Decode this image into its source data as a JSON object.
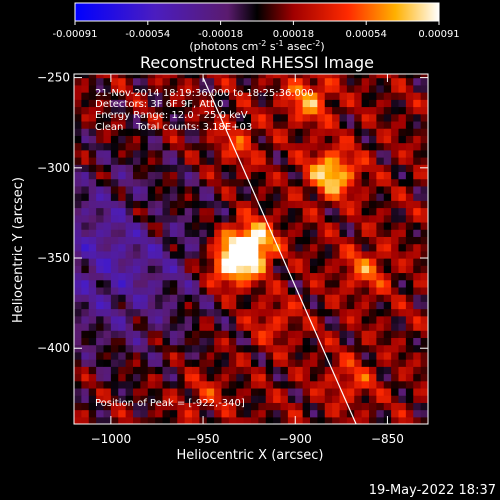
{
  "colorbar": {
    "ticks": [
      "-0.00091",
      "-0.00054",
      "-0.00018",
      "0.00018",
      "0.00054",
      "0.00091"
    ],
    "unit_text": "(photons cm",
    "unit_sup1": "-2",
    "unit_mid": " s",
    "unit_sup2": "-1",
    "unit_tail": " asec",
    "unit_sup3": "-2",
    "unit_close": ")",
    "range": [
      -0.00091,
      0.00091
    ]
  },
  "chart_data": {
    "type": "heatmap",
    "title": "Reconstructed RHESSI Image",
    "xlabel": "Heliocentric X (arcsec)",
    "ylabel": "Heliocentric Y (arcsec)",
    "xlim": [
      -1020,
      -828
    ],
    "ylim": [
      -442,
      -248
    ],
    "xticks": [
      -1000,
      -950,
      -900,
      -850
    ],
    "yticks": [
      -250,
      -300,
      -350,
      -400
    ],
    "xtick_labels": [
      "−1000",
      "−950",
      "−900",
      "−850"
    ],
    "ytick_labels": [
      "−250",
      "−300",
      "−350",
      "−400"
    ],
    "hotspots": [
      {
        "x": -924,
        "y": -342,
        "value": 0.00091
      },
      {
        "x": -934,
        "y": -353,
        "value": 0.00085
      },
      {
        "x": -880,
        "y": -303,
        "value": 0.0007
      },
      {
        "x": -893,
        "y": -262,
        "value": 0.00048
      },
      {
        "x": -932,
        "y": -287,
        "value": 0.0003
      },
      {
        "x": -912,
        "y": -385,
        "value": 0.00026
      },
      {
        "x": -862,
        "y": -356,
        "value": 0.00036
      },
      {
        "x": -977,
        "y": -325,
        "value": 0.00018
      },
      {
        "x": -950,
        "y": -425,
        "value": 0.00022
      },
      {
        "x": -870,
        "y": -418,
        "value": 0.00028
      }
    ],
    "cold_region": {
      "x": -1000,
      "y": -350
    },
    "limb_line": [
      {
        "x": -950,
        "y": -250
      },
      {
        "x": -867,
        "y": -442
      }
    ],
    "annotations": [
      "21-Nov-2014 18:19:36.000 to 18:25:36.000",
      "Detectors: 3F 6F 9F, Att 0",
      "Energy Range: 12.0 - 25.0 keV",
      "Clean    Total counts: 3.18E+03"
    ],
    "peak_label": "Position of Peak = [-922,-340]"
  },
  "footer_date": "19-May-2022 18:37"
}
